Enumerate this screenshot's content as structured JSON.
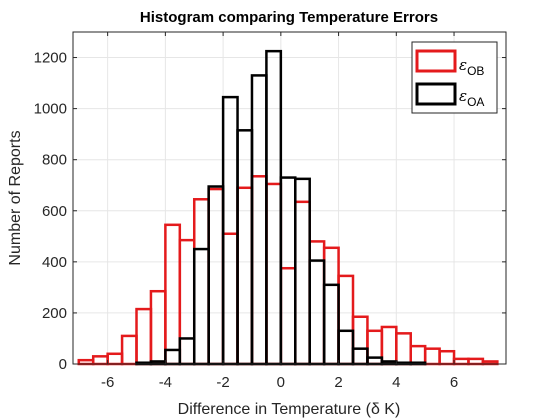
{
  "chart_data": {
    "type": "bar",
    "title": "Histogram comparing Temperature Errors",
    "xlabel": "Difference in Temperature (δ K)",
    "ylabel": "Number of Reports",
    "xlim": [
      -7.2,
      7.8
    ],
    "ylim": [
      0,
      1300
    ],
    "xticks": [
      -6,
      -4,
      -2,
      0,
      2,
      4,
      6
    ],
    "yticks": [
      0,
      200,
      400,
      600,
      800,
      1000,
      1200
    ],
    "grid": true,
    "legend_position": "top-right",
    "series": [
      {
        "name": "ε",
        "subscript": "OB",
        "color": "#e41a1c",
        "bin_edges": [
          -7.0,
          -6.5,
          -6.0,
          -5.5,
          -5.0,
          -4.5,
          -4.0,
          -3.5,
          -3.0,
          -2.5,
          -2.0,
          -1.5,
          -1.0,
          -0.5,
          0.0,
          0.5,
          1.0,
          1.5,
          2.0,
          2.5,
          3.0,
          3.5,
          4.0,
          4.5,
          5.0,
          5.5,
          6.0,
          6.5,
          7.0,
          7.5
        ],
        "counts": [
          15,
          30,
          40,
          110,
          215,
          285,
          545,
          485,
          645,
          685,
          510,
          690,
          735,
          705,
          375,
          635,
          480,
          455,
          345,
          185,
          130,
          145,
          120,
          70,
          60,
          50,
          20,
          20,
          10
        ]
      },
      {
        "name": "ε",
        "subscript": "OA",
        "color": "#000000",
        "bin_edges": [
          -5.0,
          -4.5,
          -4.0,
          -3.5,
          -3.0,
          -2.5,
          -2.0,
          -1.5,
          -1.0,
          -0.5,
          0.0,
          0.5,
          1.0,
          1.5,
          2.0,
          2.5,
          3.0,
          3.5,
          4.0,
          4.5,
          5.0
        ],
        "counts": [
          5,
          10,
          55,
          100,
          450,
          695,
          1045,
          915,
          1130,
          1225,
          730,
          725,
          405,
          310,
          130,
          60,
          25,
          10,
          5,
          5
        ]
      }
    ]
  }
}
